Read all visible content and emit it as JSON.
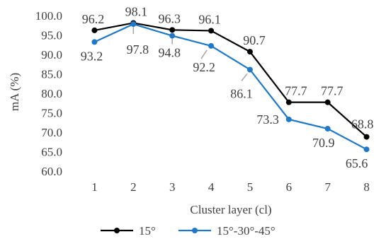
{
  "chart_data": {
    "type": "line",
    "xlabel": "Cluster layer (cl)",
    "ylabel": "mA (%)",
    "ylim": [
      60,
      100
    ],
    "ytick_step": 5,
    "categories": [
      "1",
      "2",
      "3",
      "4",
      "5",
      "6",
      "7",
      "8"
    ],
    "grid": false,
    "legend_position": "bottom",
    "series": [
      {
        "name": "15°",
        "color": "#000000",
        "values": [
          96.2,
          98.1,
          96.3,
          96.1,
          90.7,
          77.7,
          77.7,
          68.8
        ],
        "labels": [
          "96.2",
          "98.1",
          "96.3",
          "96.1",
          "90.7",
          "77.7",
          "77.7",
          "68.8"
        ]
      },
      {
        "name": "15°-30°-45°",
        "color": "#1f78c8",
        "values": [
          93.2,
          97.8,
          94.8,
          92.2,
          86.1,
          73.3,
          70.9,
          65.6
        ],
        "labels": [
          "93.2",
          "97.8",
          "94.8",
          "92.2",
          "86.1",
          "73.3",
          "70.9",
          "65.6"
        ]
      }
    ]
  }
}
